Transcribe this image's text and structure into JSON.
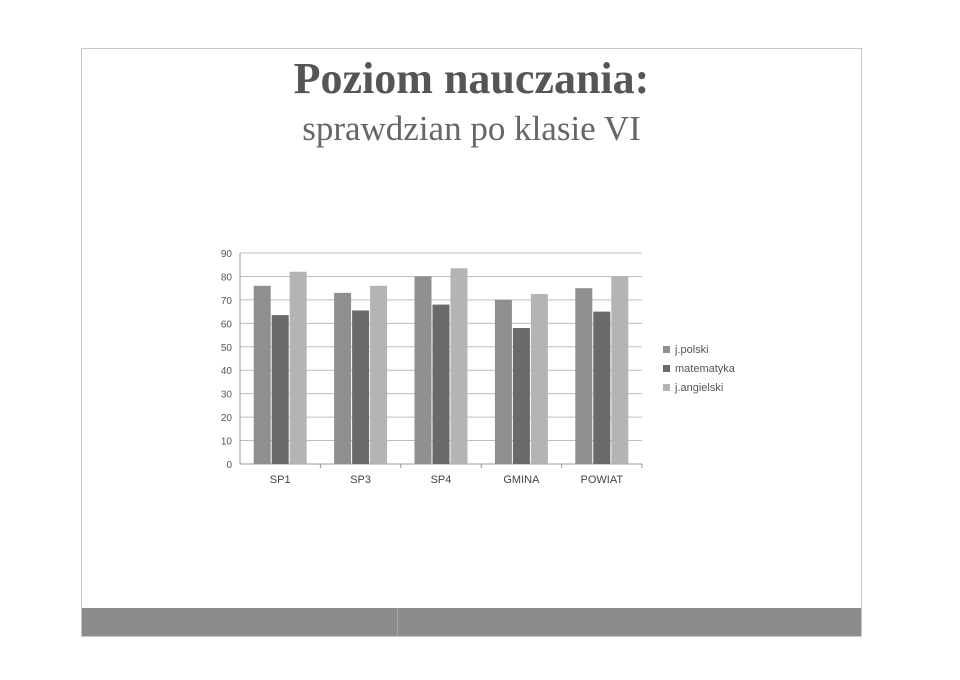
{
  "slide": {
    "title": "Poziom nauczania:",
    "subtitle": "sprawdzian po klasie VI"
  },
  "chart_data": {
    "type": "bar",
    "categories": [
      "SP1",
      "SP3",
      "SP4",
      "GMINA",
      "POWIAT"
    ],
    "series": [
      {
        "name": "j.polski",
        "color": "#8f8f8f",
        "values": [
          76,
          73,
          80,
          70,
          75
        ]
      },
      {
        "name": "matematyka",
        "color": "#6a6a6a",
        "values": [
          63.5,
          65.5,
          68,
          58,
          65
        ]
      },
      {
        "name": "j.angielski",
        "color": "#b4b4b4",
        "values": [
          82,
          76,
          83.5,
          72.5,
          80
        ]
      }
    ],
    "ylim": [
      0,
      90
    ],
    "yticks": [
      0,
      10,
      20,
      30,
      40,
      50,
      60,
      70,
      80,
      90
    ],
    "grid": true,
    "legend_position": "right"
  }
}
